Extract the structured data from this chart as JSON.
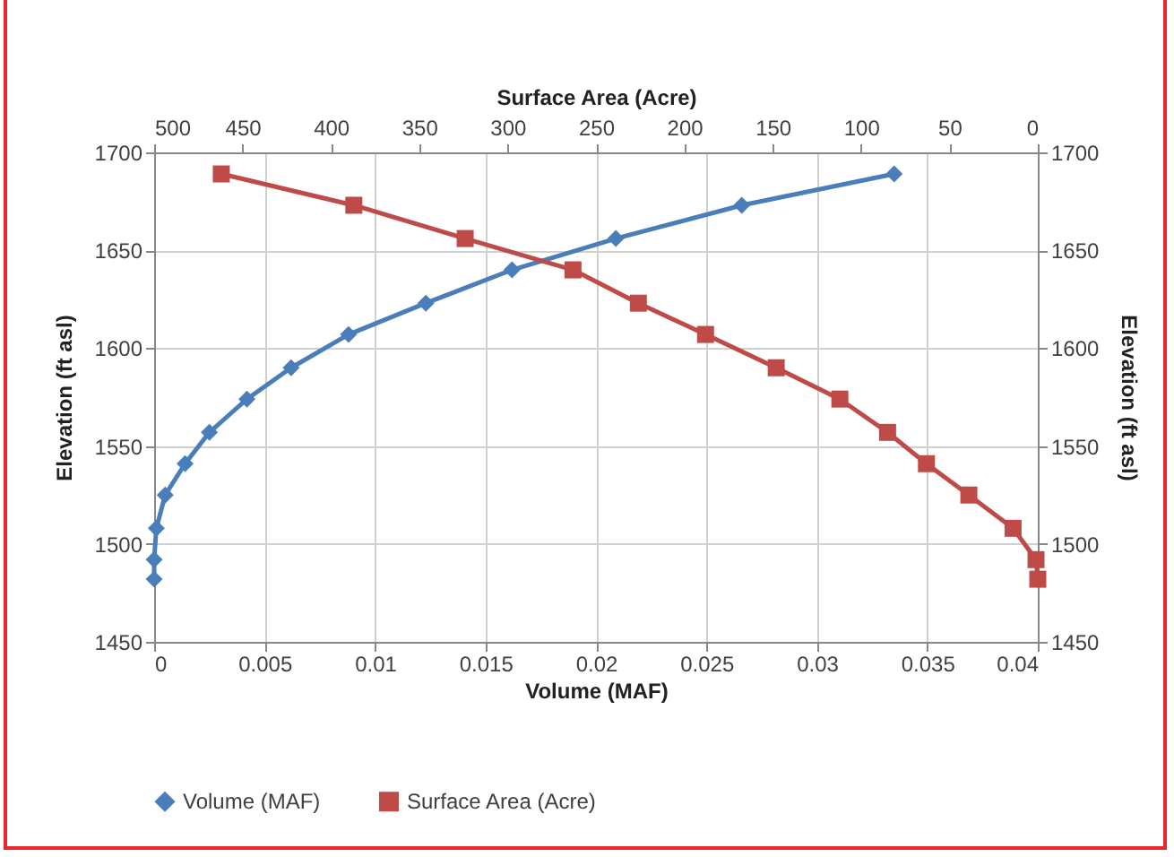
{
  "chart_data": {
    "type": "line",
    "xlabel": "Volume (MAF)",
    "x2label": "Surface Area (Acre)",
    "ylabel": "Elevation (ft asl)",
    "y2label": "Elevation (ft asl)",
    "xlim": [
      0,
      0.04
    ],
    "xticks": [
      0,
      0.005,
      0.01,
      0.015,
      0.02,
      0.025,
      0.03,
      0.035,
      0.04
    ],
    "x2lim": [
      500,
      0
    ],
    "x2ticks": [
      500,
      450,
      400,
      350,
      300,
      250,
      200,
      150,
      100,
      50,
      0
    ],
    "ylim": [
      1450,
      1700
    ],
    "yticks": [
      1450,
      1500,
      1550,
      1600,
      1650,
      1700
    ],
    "y2lim": [
      1450,
      1700
    ],
    "y2ticks": [
      1450,
      1500,
      1550,
      1600,
      1650,
      1700
    ],
    "grid": true,
    "legend": "bottom",
    "line_style": "solid",
    "series": [
      {
        "name": "Volume (MAF)",
        "color": "#4a7ebb",
        "marker": "diamond",
        "x": [
          0,
          0,
          0.0001,
          0.0005,
          0.0014,
          0.0025,
          0.0042,
          0.0062,
          0.0088,
          0.0123,
          0.0162,
          0.0209,
          0.0266,
          0.0335
        ],
        "values": [
          1482,
          1492,
          1508,
          1525,
          1541,
          1557,
          1574,
          1590,
          1607,
          1623,
          1640,
          1656,
          1673,
          1689
        ]
      },
      {
        "name": "Surface Area (Acre)",
        "color": "#be4b48",
        "marker": "square",
        "axis": "x2",
        "x": [
          0,
          1,
          14,
          39,
          63,
          85,
          112,
          148,
          188,
          226,
          263,
          324,
          387,
          462
        ],
        "values": [
          1482,
          1492,
          1508,
          1525,
          1541,
          1557,
          1574,
          1590,
          1607,
          1623,
          1640,
          1656,
          1673,
          1689
        ]
      }
    ]
  }
}
